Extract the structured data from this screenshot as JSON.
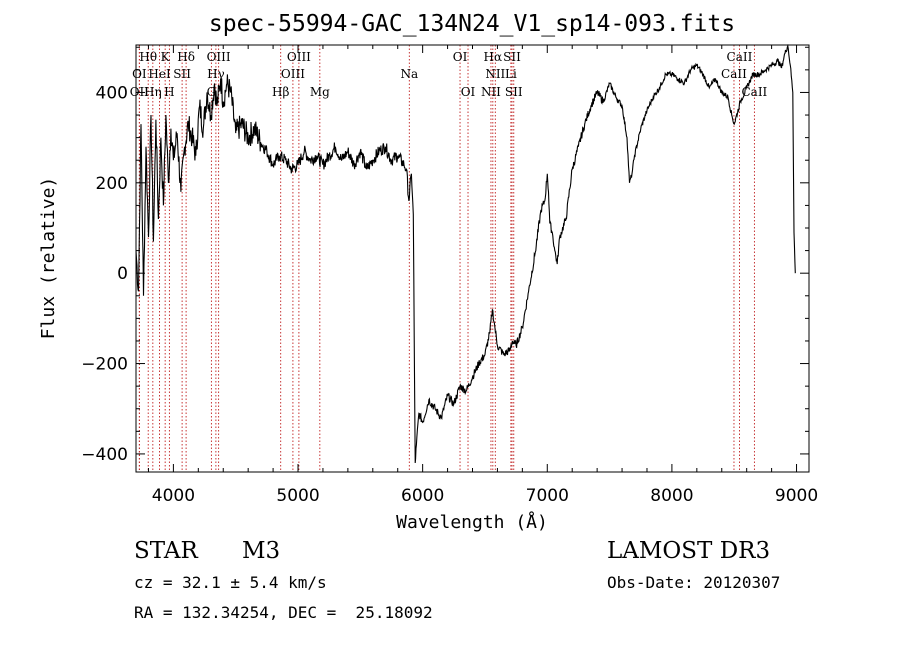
{
  "chart_data": {
    "type": "line",
    "title": "spec-55994-GAC_134N24_V1_sp14-093.fits",
    "xlabel": "Wavelength (Å)",
    "ylabel": "Flux (relative)",
    "xlim": [
      3700,
      9100
    ],
    "ylim": [
      -440,
      505
    ],
    "x_ticks": [
      4000,
      5000,
      6000,
      7000,
      8000,
      9000
    ],
    "y_ticks": [
      -400,
      -200,
      0,
      200,
      400
    ],
    "grid": false,
    "series": [
      {
        "x": [
          3700,
          3720,
          3740,
          3760,
          3780,
          3800,
          3820,
          3840,
          3860,
          3880,
          3900,
          3920,
          3940,
          3960,
          3980,
          4000,
          4030,
          4060,
          4090,
          4120,
          4150,
          4180,
          4210,
          4240,
          4270,
          4300,
          4330,
          4350,
          4380,
          4400,
          4430,
          4460,
          4500,
          4550,
          4600,
          4650,
          4700,
          4750,
          4800,
          4850,
          4900,
          4950,
          5000,
          5050,
          5100,
          5150,
          5200,
          5250,
          5300,
          5350,
          5400,
          5450,
          5500,
          5550,
          5600,
          5650,
          5700,
          5750,
          5800,
          5850,
          5870,
          5890,
          5910,
          5925,
          5940,
          5950,
          5970,
          6000,
          6050,
          6100,
          6150,
          6200,
          6250,
          6300,
          6350,
          6400,
          6450,
          6500,
          6540,
          6560,
          6580,
          6600,
          6650,
          6700,
          6720,
          6750,
          6800,
          6850,
          6900,
          6950,
          6980,
          7000,
          7010,
          7020,
          7040,
          7060,
          7080,
          7100,
          7150,
          7200,
          7250,
          7300,
          7350,
          7400,
          7450,
          7500,
          7550,
          7600,
          7640,
          7660,
          7680,
          7700,
          7750,
          7800,
          7850,
          7900,
          7950,
          8000,
          8050,
          8100,
          8150,
          8200,
          8250,
          8300,
          8350,
          8400,
          8450,
          8480,
          8500,
          8550,
          8600,
          8650,
          8700,
          8750,
          8800,
          8850,
          8880,
          8900,
          8930,
          8950,
          8970,
          8980,
          8990
        ],
        "y": [
          50,
          -40,
          330,
          -50,
          280,
          80,
          350,
          70,
          340,
          120,
          300,
          150,
          350,
          200,
          320,
          250,
          310,
          180,
          280,
          330,
          300,
          260,
          370,
          320,
          400,
          350,
          420,
          370,
          430,
          380,
          420,
          400,
          310,
          330,
          300,
          320,
          290,
          270,
          240,
          260,
          250,
          230,
          240,
          270,
          250,
          260,
          240,
          260,
          280,
          250,
          270,
          240,
          270,
          230,
          250,
          270,
          280,
          250,
          260,
          240,
          230,
          160,
          220,
          130,
          -420,
          -380,
          -310,
          -330,
          -280,
          -300,
          -320,
          -270,
          -290,
          -250,
          -260,
          -230,
          -200,
          -180,
          -130,
          -80,
          -120,
          -160,
          -180,
          -170,
          -150,
          -160,
          -120,
          -40,
          40,
          140,
          160,
          220,
          180,
          110,
          90,
          50,
          20,
          80,
          120,
          230,
          280,
          330,
          370,
          400,
          380,
          420,
          390,
          370,
          300,
          200,
          220,
          260,
          320,
          360,
          390,
          410,
          440,
          440,
          430,
          420,
          450,
          460,
          440,
          410,
          430,
          400,
          390,
          350,
          330,
          380,
          410,
          440,
          440,
          450,
          460,
          470,
          455,
          480,
          505,
          460,
          400,
          90,
          0
        ]
      }
    ],
    "lines": [
      {
        "name": "Hθ",
        "x": 3798,
        "row": 0
      },
      {
        "name": "K",
        "x": 3934,
        "row": 0
      },
      {
        "name": "Hδ",
        "x": 4102,
        "row": 0
      },
      {
        "name": "OIII",
        "x": 4363,
        "row": 0
      },
      {
        "name": "OIII",
        "x": 5007,
        "row": 0
      },
      {
        "name": "OI",
        "x": 6300,
        "row": 0
      },
      {
        "name": "Hα",
        "x": 6563,
        "row": 0
      },
      {
        "name": "SII",
        "x": 6717,
        "row": 0
      },
      {
        "name": "CaII",
        "x": 8542,
        "row": 0
      },
      {
        "name": "OI",
        "x": 3727,
        "row": 1
      },
      {
        "name": "HeI",
        "x": 3889,
        "row": 1
      },
      {
        "name": "SII",
        "x": 4070,
        "row": 1
      },
      {
        "name": "Hγ",
        "x": 4341,
        "row": 1
      },
      {
        "name": "OIII",
        "x": 4959,
        "row": 1
      },
      {
        "name": "Na",
        "x": 5893,
        "row": 1
      },
      {
        "name": "NII",
        "x": 6583,
        "row": 1
      },
      {
        "name": "Li",
        "x": 6708,
        "row": 1
      },
      {
        "name": "CaII",
        "x": 8498,
        "row": 1
      },
      {
        "name": "OII",
        "x": 3727,
        "row": 2
      },
      {
        "name": "Hη",
        "x": 3835,
        "row": 2
      },
      {
        "name": "H",
        "x": 3968,
        "row": 2
      },
      {
        "name": "G",
        "x": 4305,
        "row": 2
      },
      {
        "name": "Hβ",
        "x": 4861,
        "row": 2
      },
      {
        "name": "Mg",
        "x": 5175,
        "row": 2
      },
      {
        "name": "OI",
        "x": 6364,
        "row": 2
      },
      {
        "name": "NII",
        "x": 6548,
        "row": 2
      },
      {
        "name": "SII",
        "x": 6731,
        "row": 2
      },
      {
        "name": "CaII",
        "x": 8662,
        "row": 2
      }
    ]
  },
  "info": {
    "object_class": "STAR",
    "subclass": "M3",
    "cz": "cz = 32.1 ± 5.4 km/s",
    "coords": "RA = 132.34254, DEC =  25.18092",
    "survey": "LAMOST DR3",
    "obs_date": "Obs-Date: 20120307"
  }
}
